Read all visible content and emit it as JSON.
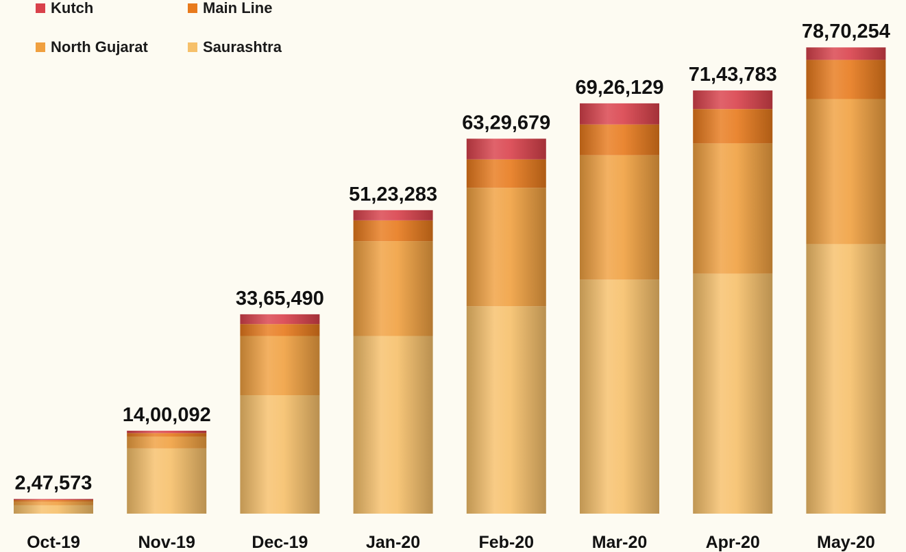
{
  "chart_data": {
    "type": "bar",
    "stacked": true,
    "categories": [
      "Oct-19",
      "Nov-19",
      "Dec-19",
      "Jan-20",
      "Feb-20",
      "Mar-20",
      "Apr-20",
      "May-20"
    ],
    "totals": [
      247573,
      1400092,
      3365490,
      5123283,
      6329679,
      6926129,
      7143783,
      7870254
    ],
    "total_labels": [
      "2,47,573",
      "14,00,092",
      "33,65,490",
      "51,23,283",
      "63,29,679",
      "69,26,129",
      "71,43,783",
      "78,70,254"
    ],
    "series": [
      {
        "name": "Saurashtra",
        "color": "#f6c06a",
        "values": [
          140000,
          1100000,
          2000000,
          3000000,
          3500000,
          3950000,
          4050000,
          4550000
        ]
      },
      {
        "name": "North Gujarat",
        "color": "#f0a040",
        "values": [
          60000,
          200000,
          1000000,
          1600000,
          2000000,
          2100000,
          2200000,
          2450000
        ]
      },
      {
        "name": "Main Line",
        "color": "#e87a1c",
        "values": [
          30000,
          60000,
          200000,
          350000,
          480000,
          520000,
          580000,
          660000
        ]
      },
      {
        "name": "Kutch",
        "color": "#d9414b",
        "values": [
          17573,
          40092,
          165490,
          173283,
          349679,
          356129,
          313783,
          210254
        ]
      }
    ],
    "legend_order": [
      "Kutch",
      "Main Line",
      "North Gujarat",
      "Saurashtra"
    ],
    "legend_position": "top-left",
    "title": "",
    "xlabel": "",
    "ylabel": "",
    "ylim": [
      0,
      8000000
    ],
    "grid": false,
    "y_axis_visible": false
  }
}
